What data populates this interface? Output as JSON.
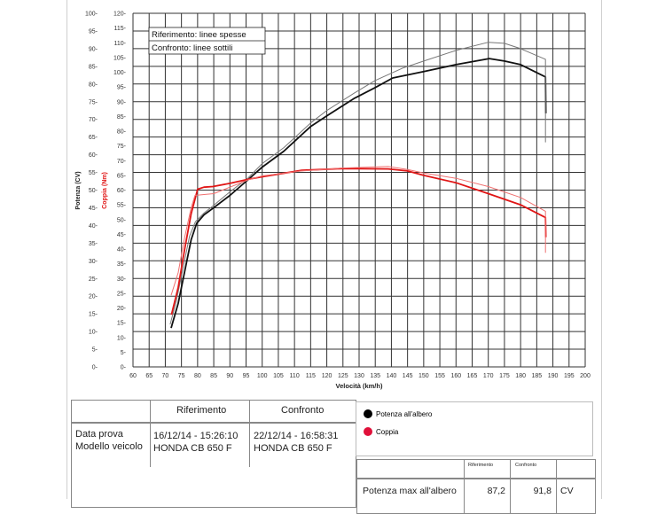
{
  "chart_data": {
    "type": "line",
    "xlabel": "Velocità (km/h)",
    "ylabel_left": "Potenza (CV)",
    "ylabel_right": "Coppia (Nm)",
    "xlim": [
      60,
      200
    ],
    "ylim_left": [
      0,
      100
    ],
    "ylim_right": [
      0,
      120
    ],
    "x_ticks": [
      60,
      65,
      70,
      75,
      80,
      85,
      90,
      95,
      100,
      105,
      110,
      115,
      120,
      125,
      130,
      135,
      140,
      145,
      150,
      155,
      160,
      165,
      170,
      175,
      180,
      185,
      190,
      195,
      200
    ],
    "y_ticks_left": [
      0,
      5,
      10,
      15,
      20,
      25,
      30,
      35,
      40,
      45,
      50,
      55,
      60,
      65,
      70,
      75,
      80,
      85,
      90,
      95,
      100
    ],
    "y_ticks_right": [
      0,
      5,
      10,
      15,
      20,
      25,
      30,
      35,
      40,
      45,
      50,
      55,
      60,
      65,
      70,
      75,
      80,
      85,
      90,
      95,
      100,
      105,
      110,
      115,
      120
    ],
    "grid": true,
    "annotation": [
      "Riferimento: linee spesse",
      "Confronto: linee sottili"
    ],
    "series": [
      {
        "name": "Potenza all'albero",
        "test": "Riferimento",
        "axis": "left",
        "color": "#111111",
        "thick": true,
        "points": [
          [
            71.8,
            11
          ],
          [
            74,
            18
          ],
          [
            76,
            27
          ],
          [
            78,
            36
          ],
          [
            79.7,
            40.6
          ],
          [
            82,
            43
          ],
          [
            84.7,
            44.8
          ],
          [
            90,
            48.5
          ],
          [
            95.7,
            53
          ],
          [
            100,
            56.5
          ],
          [
            106.7,
            61
          ],
          [
            115,
            68
          ],
          [
            120,
            71
          ],
          [
            128.6,
            76
          ],
          [
            135,
            79
          ],
          [
            140.4,
            81.7
          ],
          [
            150,
            83.5
          ],
          [
            160,
            85.5
          ],
          [
            170.3,
            87.2
          ],
          [
            175,
            86.5
          ],
          [
            180,
            85.5
          ],
          [
            187.7,
            82
          ],
          [
            187.8,
            71.7
          ]
        ]
      },
      {
        "name": "Potenza all'albero",
        "test": "Confronto",
        "axis": "left",
        "color": "#777777",
        "thick": false,
        "points": [
          [
            71.5,
            12
          ],
          [
            73.5,
            19
          ],
          [
            75.5,
            28
          ],
          [
            77.5,
            37
          ],
          [
            79.3,
            41
          ],
          [
            82,
            43.5
          ],
          [
            84.7,
            45.5
          ],
          [
            90,
            49.5
          ],
          [
            95.7,
            53.5
          ],
          [
            100,
            57.5
          ],
          [
            106.7,
            62
          ],
          [
            115,
            69
          ],
          [
            120,
            72.5
          ],
          [
            128.6,
            77.5
          ],
          [
            135,
            81
          ],
          [
            143.5,
            84.5
          ],
          [
            150,
            86.5
          ],
          [
            160,
            89.5
          ],
          [
            170,
            91.8
          ],
          [
            175,
            91.5
          ],
          [
            180,
            90
          ],
          [
            187.7,
            87
          ],
          [
            187.7,
            63.5
          ]
        ]
      },
      {
        "name": "Coppia",
        "test": "Riferimento",
        "axis": "right",
        "color": "#e01515",
        "thick": true,
        "points": [
          [
            71.9,
            17.7
          ],
          [
            74,
            27
          ],
          [
            76,
            40
          ],
          [
            78,
            52
          ],
          [
            80,
            60.3
          ],
          [
            82,
            61
          ],
          [
            84.7,
            61.2
          ],
          [
            90,
            62.3
          ],
          [
            95.7,
            63.7
          ],
          [
            100,
            64.5
          ],
          [
            112.2,
            66.7
          ],
          [
            125,
            67.3
          ],
          [
            139,
            67.2
          ],
          [
            145,
            66.5
          ],
          [
            150,
            65
          ],
          [
            160,
            62.5
          ],
          [
            170,
            58.8
          ],
          [
            180,
            55
          ],
          [
            187.7,
            50.7
          ],
          [
            187.8,
            44
          ]
        ]
      },
      {
        "name": "Coppia",
        "test": "Confronto",
        "axis": "right",
        "color": "#f07070",
        "thick": false,
        "points": [
          [
            71.8,
            24.3
          ],
          [
            74,
            32
          ],
          [
            76,
            44
          ],
          [
            78,
            54
          ],
          [
            79.2,
            58.2
          ],
          [
            82,
            58.5
          ],
          [
            85,
            58.8
          ],
          [
            90,
            61
          ],
          [
            95.7,
            63.5
          ],
          [
            100,
            64.8
          ],
          [
            112.2,
            66.5
          ],
          [
            125,
            67.5
          ],
          [
            139,
            68
          ],
          [
            145,
            67
          ],
          [
            150,
            65.8
          ],
          [
            160,
            64
          ],
          [
            170,
            61.2
          ],
          [
            180,
            57.5
          ],
          [
            187.7,
            52.8
          ],
          [
            187.7,
            38.7
          ]
        ]
      }
    ]
  },
  "info_table": {
    "headers": [
      "",
      "Riferimento",
      "Confronto"
    ],
    "row_labels": [
      "Data prova",
      "Modello veicolo"
    ],
    "riferimento": [
      "16/12/14 - 15:26:10",
      "HONDA CB 650 F"
    ],
    "confronto": [
      "22/12/14 - 16:58:31",
      "HONDA CB 650 F"
    ]
  },
  "legend": [
    {
      "label": "Potenza all'albero",
      "color": "#000000"
    },
    {
      "label": "Coppia",
      "color": "#e0103a"
    }
  ],
  "results_table": {
    "headers": [
      "",
      "Riferimento",
      "Confronto",
      ""
    ],
    "rows": [
      {
        "label": "Potenza max all'albero",
        "riferimento": "87,2",
        "confronto": "91,8",
        "unit": "CV"
      }
    ]
  }
}
